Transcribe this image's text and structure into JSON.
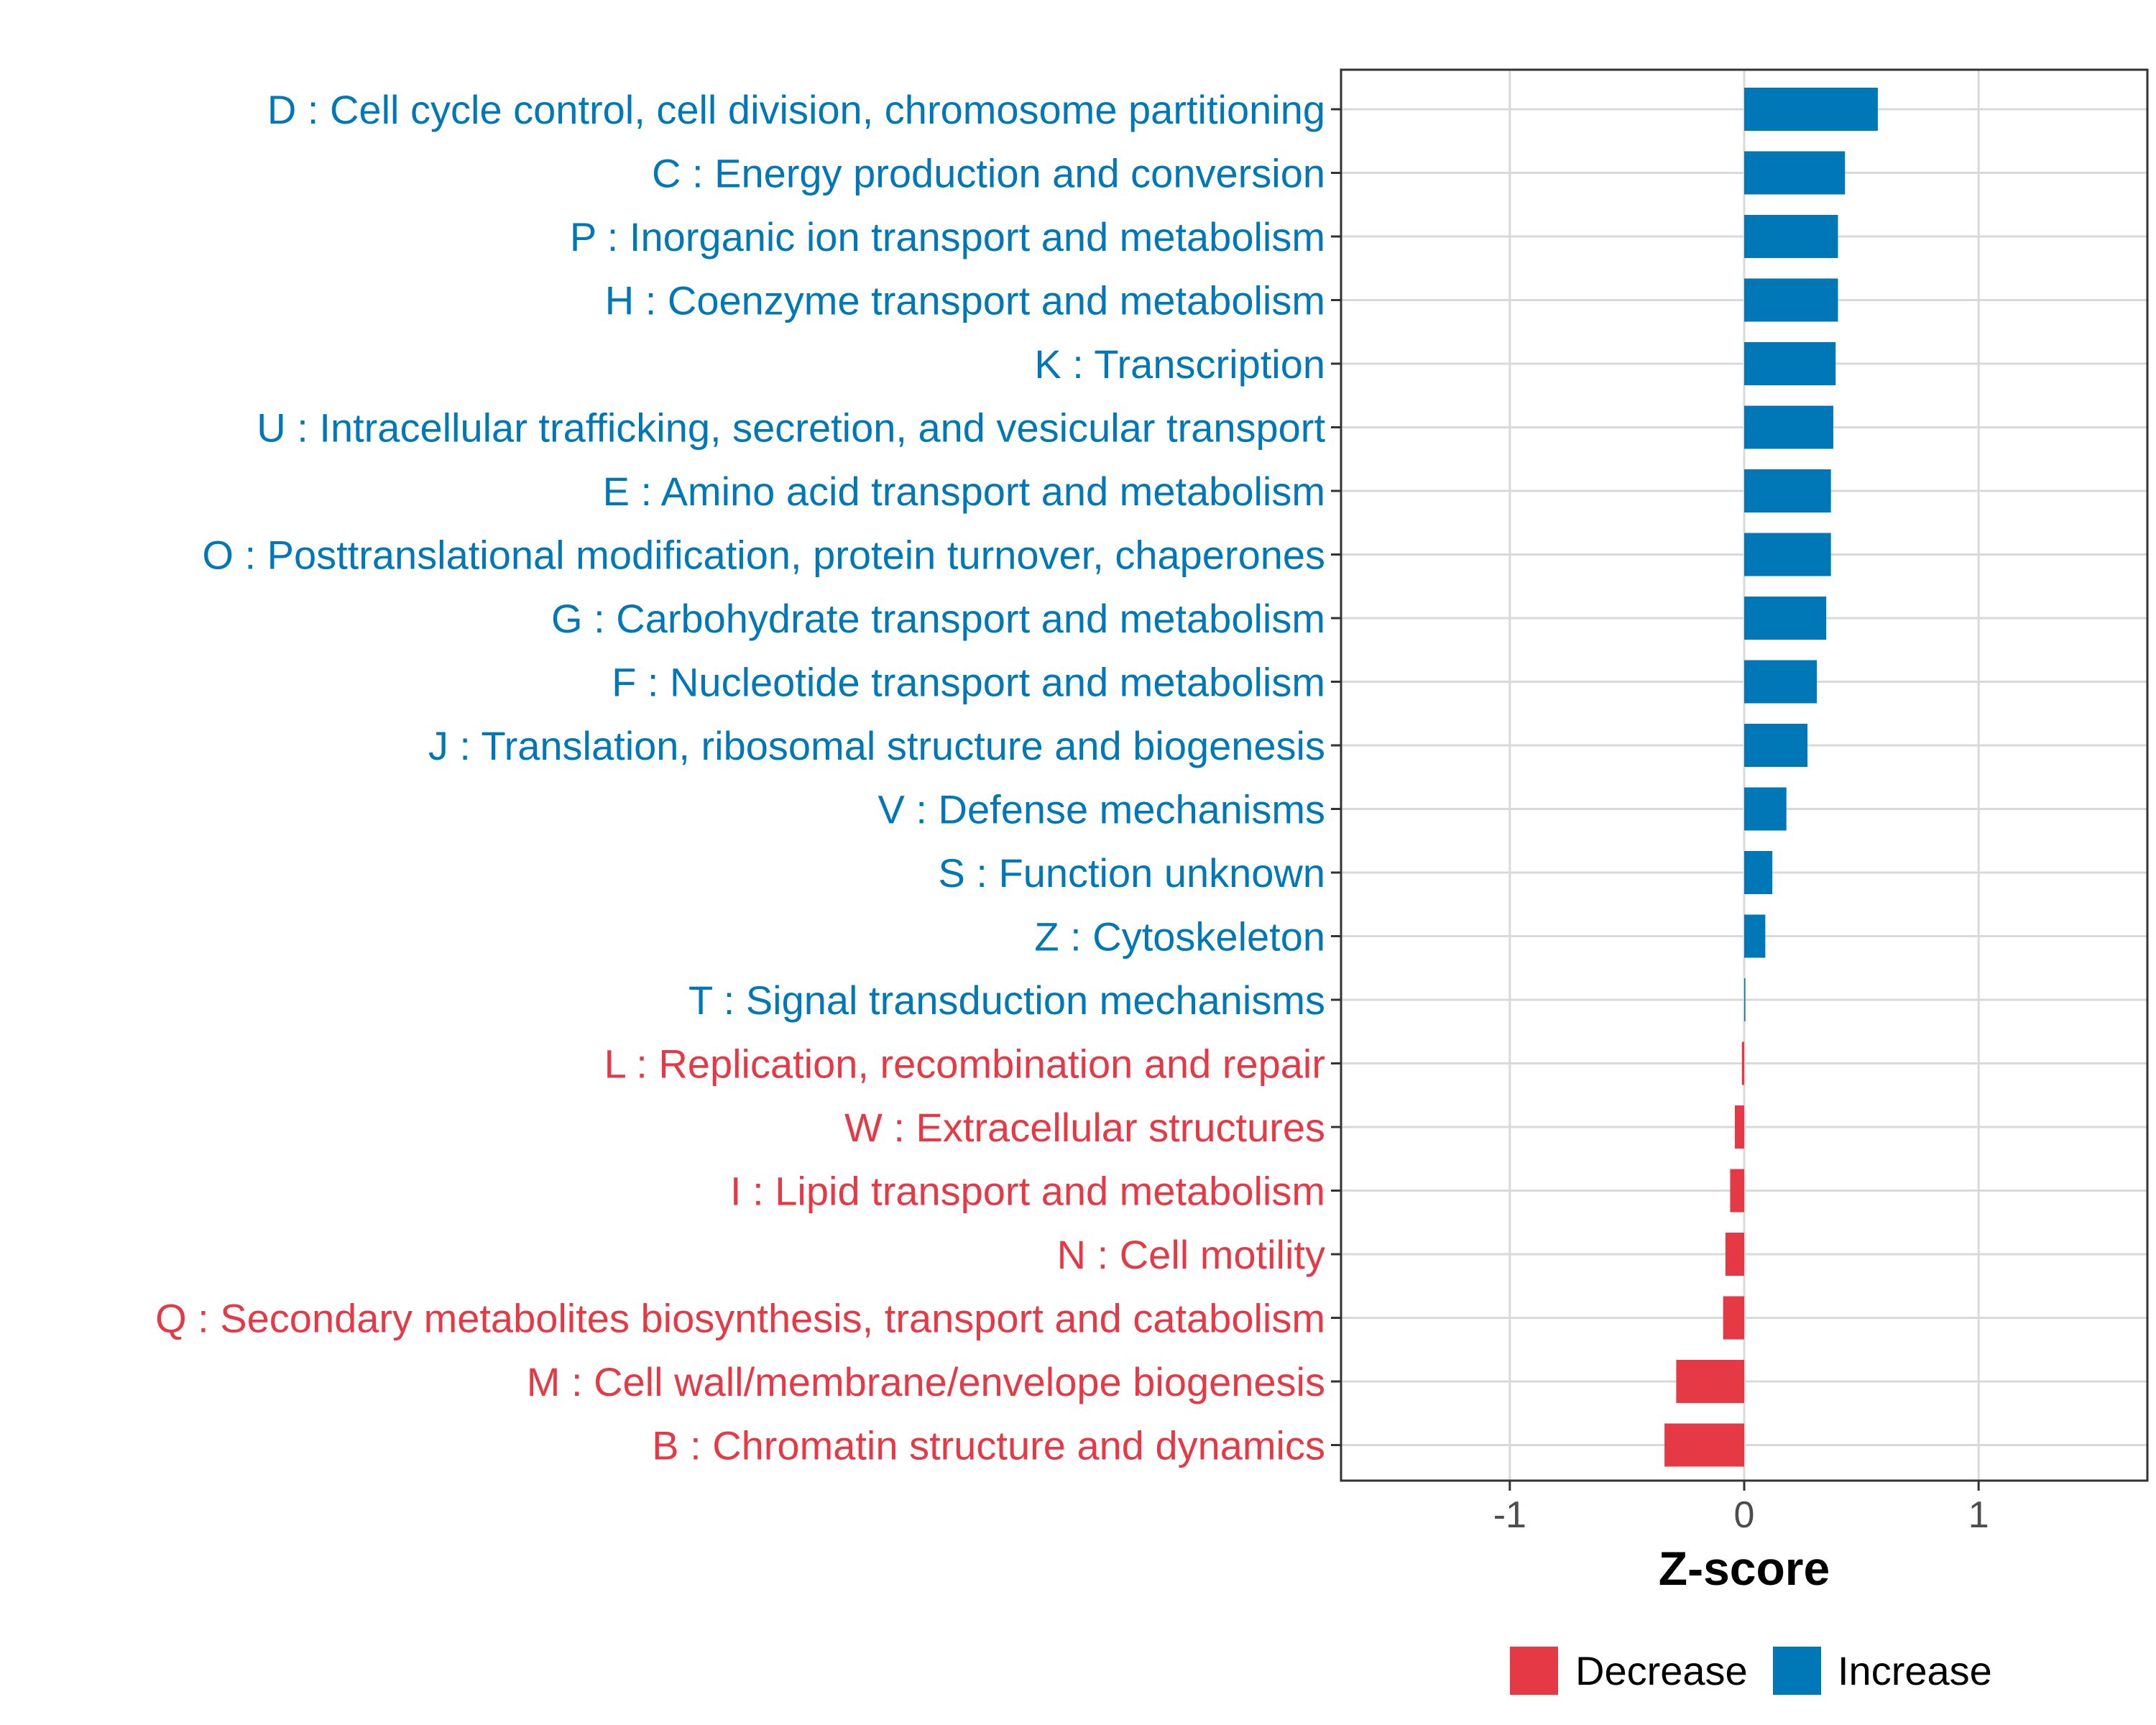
{
  "colors": {
    "increase": "#0077b6",
    "decrease": "#e63946",
    "grid": "#d9d9d9",
    "panel_border": "#333333",
    "tick": "#4d4d4d"
  },
  "chart_data": {
    "type": "bar",
    "orientation": "horizontal",
    "title": "",
    "xlabel": "Z-score",
    "ylabel": "",
    "xlim": [
      -1.72,
      1.72
    ],
    "xticks": [
      -1,
      0,
      1
    ],
    "xtick_labels": [
      "-1",
      "0",
      "1"
    ],
    "grid": true,
    "legend_position": "bottom",
    "categories": [
      "D : Cell cycle control, cell division, chromosome partitioning",
      "C : Energy production and conversion",
      "P : Inorganic ion transport and metabolism",
      "H : Coenzyme transport and metabolism",
      "K : Transcription",
      "U : Intracellular trafficking, secretion, and vesicular transport",
      "E : Amino acid transport and metabolism",
      "O : Posttranslational modification, protein turnover, chaperones",
      "G : Carbohydrate transport and metabolism",
      "F : Nucleotide transport and metabolism",
      "J : Translation, ribosomal structure and biogenesis",
      "V : Defense mechanisms",
      "S : Function unknown",
      "Z : Cytoskeleton",
      "T : Signal transduction mechanisms",
      "L : Replication, recombination and repair",
      "W : Extracellular structures",
      "I : Lipid transport and metabolism",
      "N : Cell motility",
      "Q : Secondary metabolites biosynthesis, transport and catabolism",
      "M : Cell wall/membrane/envelope biogenesis",
      "B : Chromatin structure and dynamics"
    ],
    "values": [
      0.57,
      0.43,
      0.4,
      0.4,
      0.39,
      0.38,
      0.37,
      0.37,
      0.35,
      0.31,
      0.27,
      0.18,
      0.12,
      0.09,
      0.005,
      -0.01,
      -0.04,
      -0.06,
      -0.08,
      -0.09,
      -0.29,
      -0.34
    ],
    "groups": [
      "Increase",
      "Increase",
      "Increase",
      "Increase",
      "Increase",
      "Increase",
      "Increase",
      "Increase",
      "Increase",
      "Increase",
      "Increase",
      "Increase",
      "Increase",
      "Increase",
      "Increase",
      "Decrease",
      "Decrease",
      "Decrease",
      "Decrease",
      "Decrease",
      "Decrease",
      "Decrease"
    ],
    "legend": [
      "Decrease",
      "Increase"
    ]
  }
}
